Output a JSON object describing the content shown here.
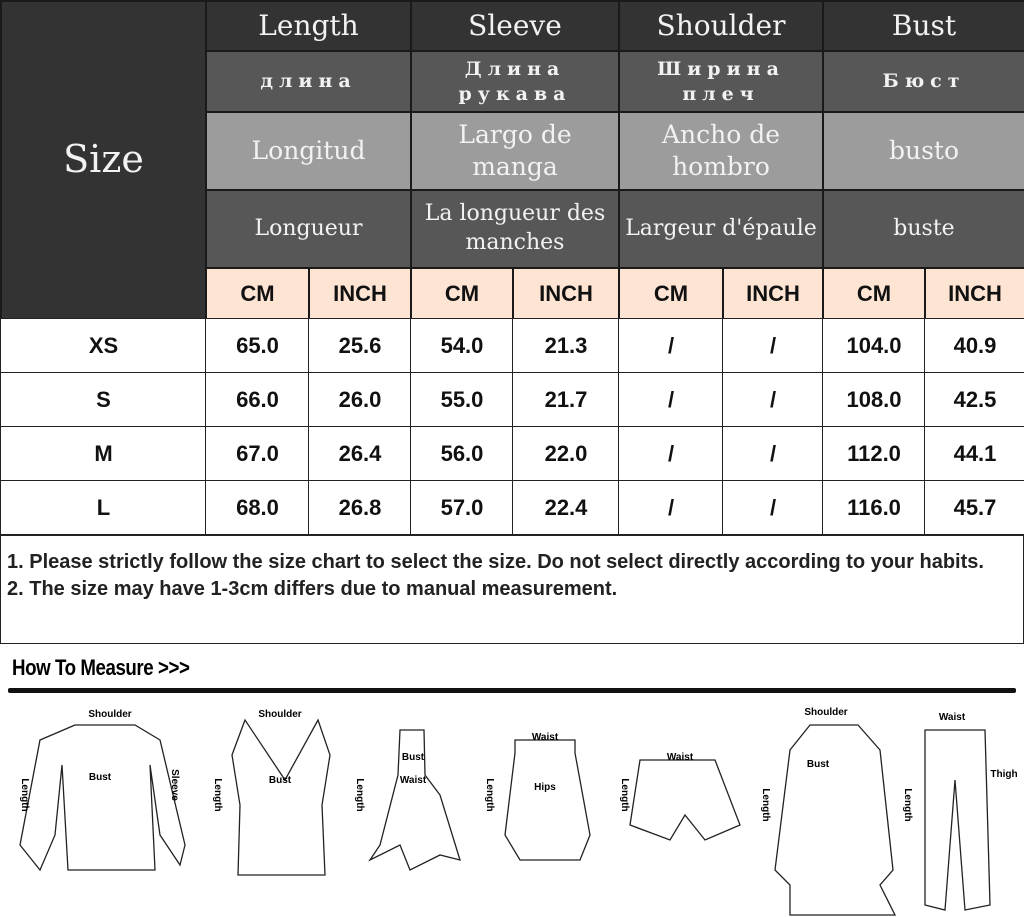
{
  "size_label": "Size",
  "columns": [
    {
      "en": "Length",
      "ru": "длина",
      "es": "Longitud",
      "fr": "Longueur"
    },
    {
      "en": "Sleeve",
      "ru": "Длина рукава",
      "es": "Largo de manga",
      "fr": "La longueur des manches"
    },
    {
      "en": "Shoulder",
      "ru": "Ширина плеч",
      "es": "Ancho de hombro",
      "fr": "Largeur d'épaule"
    },
    {
      "en": "Bust",
      "ru": "Бюст",
      "es": "busto",
      "fr": "buste"
    }
  ],
  "units": [
    "CM",
    "INCH",
    "CM",
    "INCH",
    "CM",
    "INCH",
    "CM",
    "INCH"
  ],
  "rows": [
    {
      "size": "XS",
      "values": [
        "65.0",
        "25.6",
        "54.0",
        "21.3",
        "/",
        "/",
        "104.0",
        "40.9"
      ]
    },
    {
      "size": "S",
      "values": [
        "66.0",
        "26.0",
        "55.0",
        "21.7",
        "/",
        "/",
        "108.0",
        "42.5"
      ]
    },
    {
      "size": "M",
      "values": [
        "67.0",
        "26.4",
        "56.0",
        "22.0",
        "/",
        "/",
        "112.0",
        "44.1"
      ]
    },
    {
      "size": "L",
      "values": [
        "68.0",
        "26.8",
        "57.0",
        "22.4",
        "/",
        "/",
        "116.0",
        "45.7"
      ]
    }
  ],
  "notes": [
    "1. Please strictly follow the size chart to select the size. Do not select directly according to your habits.",
    "2. The size may have 1-3cm differs due to manual measurement."
  ],
  "how_to_measure": "How To Measure >>>",
  "diagrams": [
    {
      "item": "blouse",
      "labels": [
        "Shoulder",
        "Bust",
        "Length",
        "Sleeve"
      ]
    },
    {
      "item": "tank-top",
      "labels": [
        "Shoulder",
        "Bust",
        "Length"
      ]
    },
    {
      "item": "dress",
      "labels": [
        "Bust",
        "Waist",
        "Length"
      ]
    },
    {
      "item": "skirt",
      "labels": [
        "Waist",
        "Hips",
        "Length"
      ]
    },
    {
      "item": "shorts",
      "labels": [
        "Waist",
        "Length"
      ]
    },
    {
      "item": "coat",
      "labels": [
        "Shoulder",
        "Bust",
        "Length"
      ]
    },
    {
      "item": "pants",
      "labels": [
        "Waist",
        "Thigh",
        "Length"
      ]
    }
  ],
  "colors": {
    "header_dark": "#333333",
    "header_mid": "#575757",
    "header_light": "#9c9c9c",
    "unit_row": "#fde4d3"
  }
}
